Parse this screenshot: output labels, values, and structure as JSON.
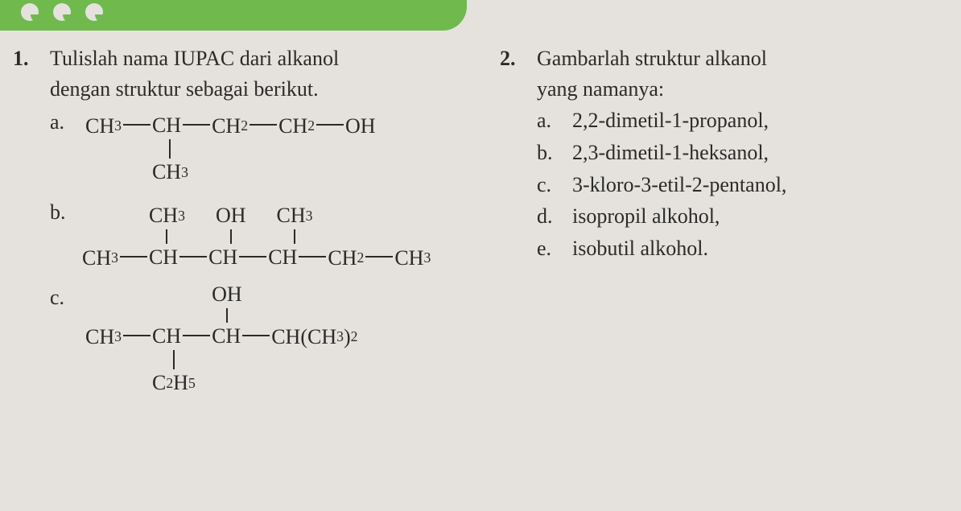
{
  "header": {
    "background_color": "#6fb94d",
    "dot_color": "#e5e2dd"
  },
  "page": {
    "background_color": "#e5e2dd",
    "text_color": "#2a2a2a",
    "fontsize_pt": 20
  },
  "q1": {
    "number": "1.",
    "prompt_line1": "Tulislah nama IUPAC dari alkanol",
    "prompt_line2": "dengan struktur sebagai berikut.",
    "a": {
      "label": "a.",
      "formula_parts": [
        "CH",
        "3",
        "CH",
        "CH",
        "2",
        "CH",
        "2",
        "OH"
      ],
      "branch": "CH",
      "branch_sub": "3"
    },
    "b": {
      "label": "b.",
      "top": {
        "g1": "CH",
        "g1sub": "3",
        "g2": "OH",
        "g3": "CH",
        "g3sub": "3"
      },
      "main": {
        "p1": "CH",
        "p1sub": "3",
        "p2": "CH",
        "p3": "CH",
        "p4": "CH",
        "p5": "CH",
        "p5sub": "2",
        "p6": "CH",
        "p6sub": "3"
      }
    },
    "c": {
      "label": "c.",
      "top": "OH",
      "main": {
        "p1": "CH",
        "p1sub": "3",
        "p2": "CH",
        "p3": "CH",
        "p4a": "CH(CH",
        "p4sub": "3",
        "p4b": ")",
        "p4c": "2"
      },
      "bottom": "C",
      "bottom_sub1": "2",
      "bottom2": "H",
      "bottom_sub2": "5"
    }
  },
  "q2": {
    "number": "2.",
    "prompt_line1": "Gambarlah struktur alkanol",
    "prompt_line2": "yang namanya:",
    "items": {
      "a": {
        "label": "a.",
        "text": "2,2-dimetil-1-propanol,"
      },
      "b": {
        "label": "b.",
        "text": "2,3-dimetil-1-heksanol,"
      },
      "c": {
        "label": "c.",
        "text": "3-kloro-3-etil-2-pentanol,"
      },
      "d": {
        "label": "d.",
        "text": "isopropil alkohol,"
      },
      "e": {
        "label": "e.",
        "text": "isobutil alkohol."
      }
    }
  }
}
